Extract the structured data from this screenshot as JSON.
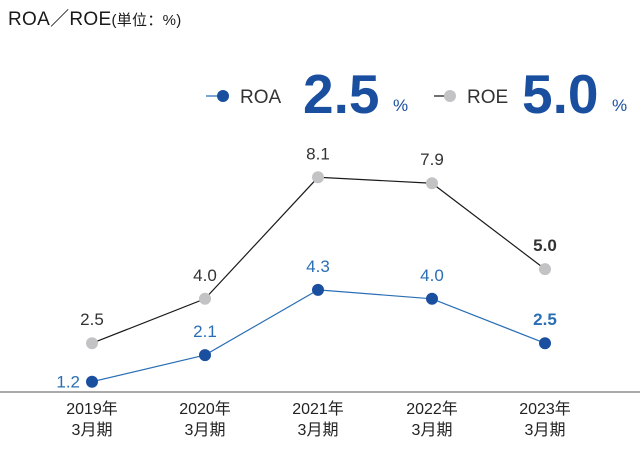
{
  "title": {
    "main": "ROA／ROE",
    "unit": "(単位：%)"
  },
  "legend": {
    "roa": {
      "label": "ROA",
      "latest": "2.5",
      "suffix": "%"
    },
    "roe": {
      "label": "ROE",
      "latest": "5.0",
      "suffix": "%"
    }
  },
  "colors": {
    "roa_line": "#2a6fb5",
    "roa_marker": "#1a4fa0",
    "roa_big": "#1a4fa0",
    "roe_line": "#1a1a1a",
    "roe_marker": "#c3c3c6",
    "axis": "#555555",
    "roa_label": "#2a6fb5",
    "roe_label": "#333333"
  },
  "chart_data": {
    "type": "line",
    "categories": [
      [
        "2019年",
        "3月期"
      ],
      [
        "2020年",
        "3月期"
      ],
      [
        "2021年",
        "3月期"
      ],
      [
        "2022年",
        "3月期"
      ],
      [
        "2023年",
        "3月期"
      ]
    ],
    "series": [
      {
        "name": "ROE",
        "values": [
          2.5,
          4.0,
          8.1,
          7.9,
          5.0
        ],
        "labels": [
          "2.5",
          "4.0",
          "8.1",
          "7.9",
          "5.0"
        ]
      },
      {
        "name": "ROA",
        "values": [
          1.2,
          2.1,
          4.3,
          4.0,
          2.5
        ],
        "labels": [
          "1.2",
          "2.1",
          "4.3",
          "4.0",
          "2.5"
        ]
      }
    ],
    "ylim": [
      0,
      8.1
    ],
    "grid": false,
    "legend_position": "top-right"
  }
}
